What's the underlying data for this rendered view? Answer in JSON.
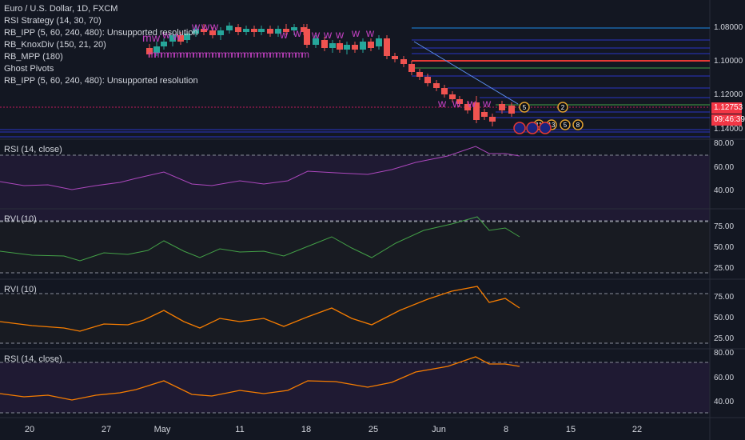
{
  "symbol_title": "Euro / U.S. Dollar, 1D, FXCM",
  "indicators": [
    "RSI Strategy (14, 30, 70)",
    "RB_IPP (5, 60, 240, 480): Unsupported resolution",
    "RB_KnoxDiv (150, 21, 20)",
    "RB_MPP (180)",
    "Ghost Pivots",
    "RB_IPP (5, 60, 240, 480): Unsupported resolution"
  ],
  "price_axis": [
    "1.08000",
    "1.10000",
    "1.12000",
    "1.14000"
  ],
  "last_price": "1.12753",
  "countdown": "09:46:39",
  "panes": {
    "rsi1": {
      "label": "RSI (14, close)",
      "ticks": [
        "80.00",
        "60.00",
        "40.00"
      ]
    },
    "rvi1": {
      "label": "RVI (10)",
      "ticks": [
        "75.00",
        "50.00",
        "25.00"
      ]
    },
    "rvi2": {
      "label": "RVI (10)",
      "ticks": [
        "75.00",
        "50.00",
        "25.00"
      ]
    },
    "rsi2": {
      "label": "RSI (14, close)",
      "ticks": [
        "80.00",
        "60.00",
        "40.00"
      ]
    }
  },
  "x_axis": [
    "20",
    "27",
    "May",
    "11",
    "18",
    "25",
    "Jun",
    "8",
    "15",
    "22"
  ],
  "event_badges": [
    "5",
    "2",
    "11",
    "13",
    "5",
    "8"
  ],
  "colors": {
    "background": "#131722",
    "up_candle": "#26a69a",
    "down_candle": "#ef5350",
    "rsi1_line": "#ab47bc",
    "rvi1_line": "#43a047",
    "rvi2_line": "#f57c00",
    "rsi2_line": "#f57c00",
    "pivot_marker": "#c040c0",
    "price_badge": "#f23645"
  }
}
